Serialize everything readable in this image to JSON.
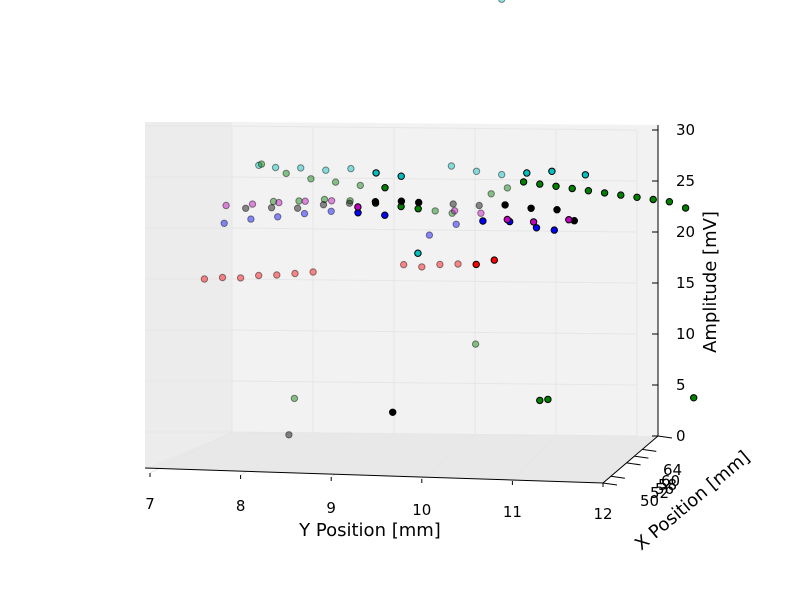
{
  "chart_data": {
    "type": "scatter3d",
    "xlabel": "X Position [mm]",
    "ylabel": "Y Position [mm]",
    "zlabel": "Amplitude [mV]",
    "y_ticks": [
      "7",
      "8",
      "9",
      "10",
      "11",
      "12"
    ],
    "z_ticks": [
      "0",
      "5",
      "10",
      "15",
      "20",
      "25",
      "30"
    ],
    "x_ticks": [
      "50",
      "52",
      "56",
      "58",
      "60",
      "64"
    ],
    "xlim": [
      50,
      64
    ],
    "ylim": [
      7,
      12
    ],
    "zlim": [
      0,
      30
    ],
    "grid": true,
    "colors": {
      "red": "#ff0000",
      "black": "#000000",
      "cyan": "#00bfbf",
      "magenta": "#bf00bf",
      "blue": "#0000ff",
      "green": "#008000",
      "pane": "#f2f2f2",
      "gridline": "#e6e6e6"
    },
    "series": [
      {
        "color": "red",
        "x": 50,
        "points": [
          [
            7.6,
            20.8
          ],
          [
            7.8,
            21.0
          ],
          [
            8.0,
            21.0
          ],
          [
            8.2,
            21.3
          ],
          [
            8.4,
            21.4
          ],
          [
            8.6,
            21.6
          ],
          [
            8.8,
            21.8
          ],
          [
            9.8,
            22.8
          ],
          [
            10.0,
            22.6
          ],
          [
            10.2,
            22.9
          ],
          [
            10.4,
            23.0
          ],
          [
            10.6,
            23.0
          ],
          [
            10.8,
            23.5
          ]
        ]
      },
      {
        "color": "green",
        "x": 64,
        "points": [
          [
            10.8,
            3.4
          ],
          [
            10.9,
            3.5
          ],
          [
            10.2,
            23.6
          ],
          [
            10.4,
            24.2
          ],
          [
            10.6,
            24.8
          ],
          [
            10.8,
            24.6
          ],
          [
            11.0,
            24.4
          ],
          [
            11.2,
            24.2
          ],
          [
            11.4,
            24.0
          ],
          [
            11.6,
            23.8
          ],
          [
            11.8,
            23.6
          ],
          [
            12.0,
            23.4
          ],
          [
            12.2,
            23.2
          ],
          [
            12.4,
            23.0
          ],
          [
            12.6,
            22.4
          ],
          [
            12.7,
            3.8
          ]
        ]
      },
      {
        "color": "green",
        "x": 58,
        "points": [
          [
            7.9,
            25.3
          ],
          [
            8.2,
            25.4
          ],
          [
            8.5,
            25.6
          ],
          [
            8.8,
            25.5
          ],
          [
            9.1,
            25.3
          ],
          [
            9.4,
            25.0
          ],
          [
            9.6,
            24.8
          ],
          [
            9.8,
            24.6
          ],
          [
            10.0,
            24.4
          ]
        ]
      },
      {
        "color": "black",
        "x": 56,
        "points": [
          [
            7.7,
            25.5
          ],
          [
            8.0,
            25.6
          ],
          [
            8.3,
            25.6
          ],
          [
            8.6,
            26.0
          ],
          [
            8.9,
            26.2
          ],
          [
            9.2,
            26.4
          ],
          [
            9.5,
            26.5
          ],
          [
            9.7,
            26.4
          ],
          [
            10.1,
            26.3
          ],
          [
            10.4,
            26.2
          ],
          [
            10.7,
            26.3
          ],
          [
            11.0,
            26.0
          ],
          [
            11.3,
            25.9
          ],
          [
            11.5,
            24.8
          ],
          [
            8.2,
            2.3
          ],
          [
            9.4,
            4.8
          ]
        ]
      },
      {
        "color": "blue",
        "x": 52,
        "points": [
          [
            7.7,
            25.8
          ],
          [
            8.0,
            26.3
          ],
          [
            8.3,
            26.6
          ],
          [
            8.6,
            27.0
          ],
          [
            8.9,
            27.3
          ],
          [
            9.2,
            27.2
          ],
          [
            9.5,
            27.0
          ],
          [
            10.0,
            25.0
          ],
          [
            10.3,
            26.2
          ],
          [
            10.6,
            26.6
          ],
          [
            10.9,
            26.6
          ],
          [
            11.2,
            26.0
          ],
          [
            11.4,
            25.8
          ]
        ]
      },
      {
        "color": "magenta",
        "x": 54,
        "points": [
          [
            7.6,
            26.7
          ],
          [
            7.9,
            26.9
          ],
          [
            8.2,
            27.1
          ],
          [
            8.5,
            27.3
          ],
          [
            8.8,
            27.4
          ],
          [
            9.1,
            26.8
          ],
          [
            10.2,
            26.6
          ],
          [
            10.5,
            26.4
          ],
          [
            10.8,
            25.8
          ],
          [
            11.1,
            25.6
          ],
          [
            11.5,
            25.9
          ]
        ]
      },
      {
        "color": "cyan",
        "x": 60,
        "points": [
          [
            7.6,
            28.0
          ],
          [
            7.8,
            27.8
          ],
          [
            8.1,
            27.8
          ],
          [
            8.4,
            27.6
          ],
          [
            8.7,
            27.8
          ],
          [
            9.0,
            27.4
          ],
          [
            9.3,
            27.1
          ],
          [
            9.5,
            19.4
          ],
          [
            9.9,
            28.2
          ],
          [
            10.2,
            27.7
          ],
          [
            10.5,
            27.4
          ],
          [
            10.8,
            27.6
          ],
          [
            11.1,
            27.8
          ],
          [
            11.5,
            27.5
          ],
          [
            10.5,
            45.0
          ]
        ]
      },
      {
        "color": "green",
        "x": 62,
        "points": [
          [
            7.5,
            27.2
          ],
          [
            7.8,
            26.3
          ],
          [
            8.1,
            25.8
          ],
          [
            8.4,
            25.5
          ],
          [
            8.7,
            25.2
          ],
          [
            9.0,
            25.0
          ],
          [
            10.1,
            9.6
          ],
          [
            7.9,
            4.0
          ]
        ]
      }
    ]
  }
}
